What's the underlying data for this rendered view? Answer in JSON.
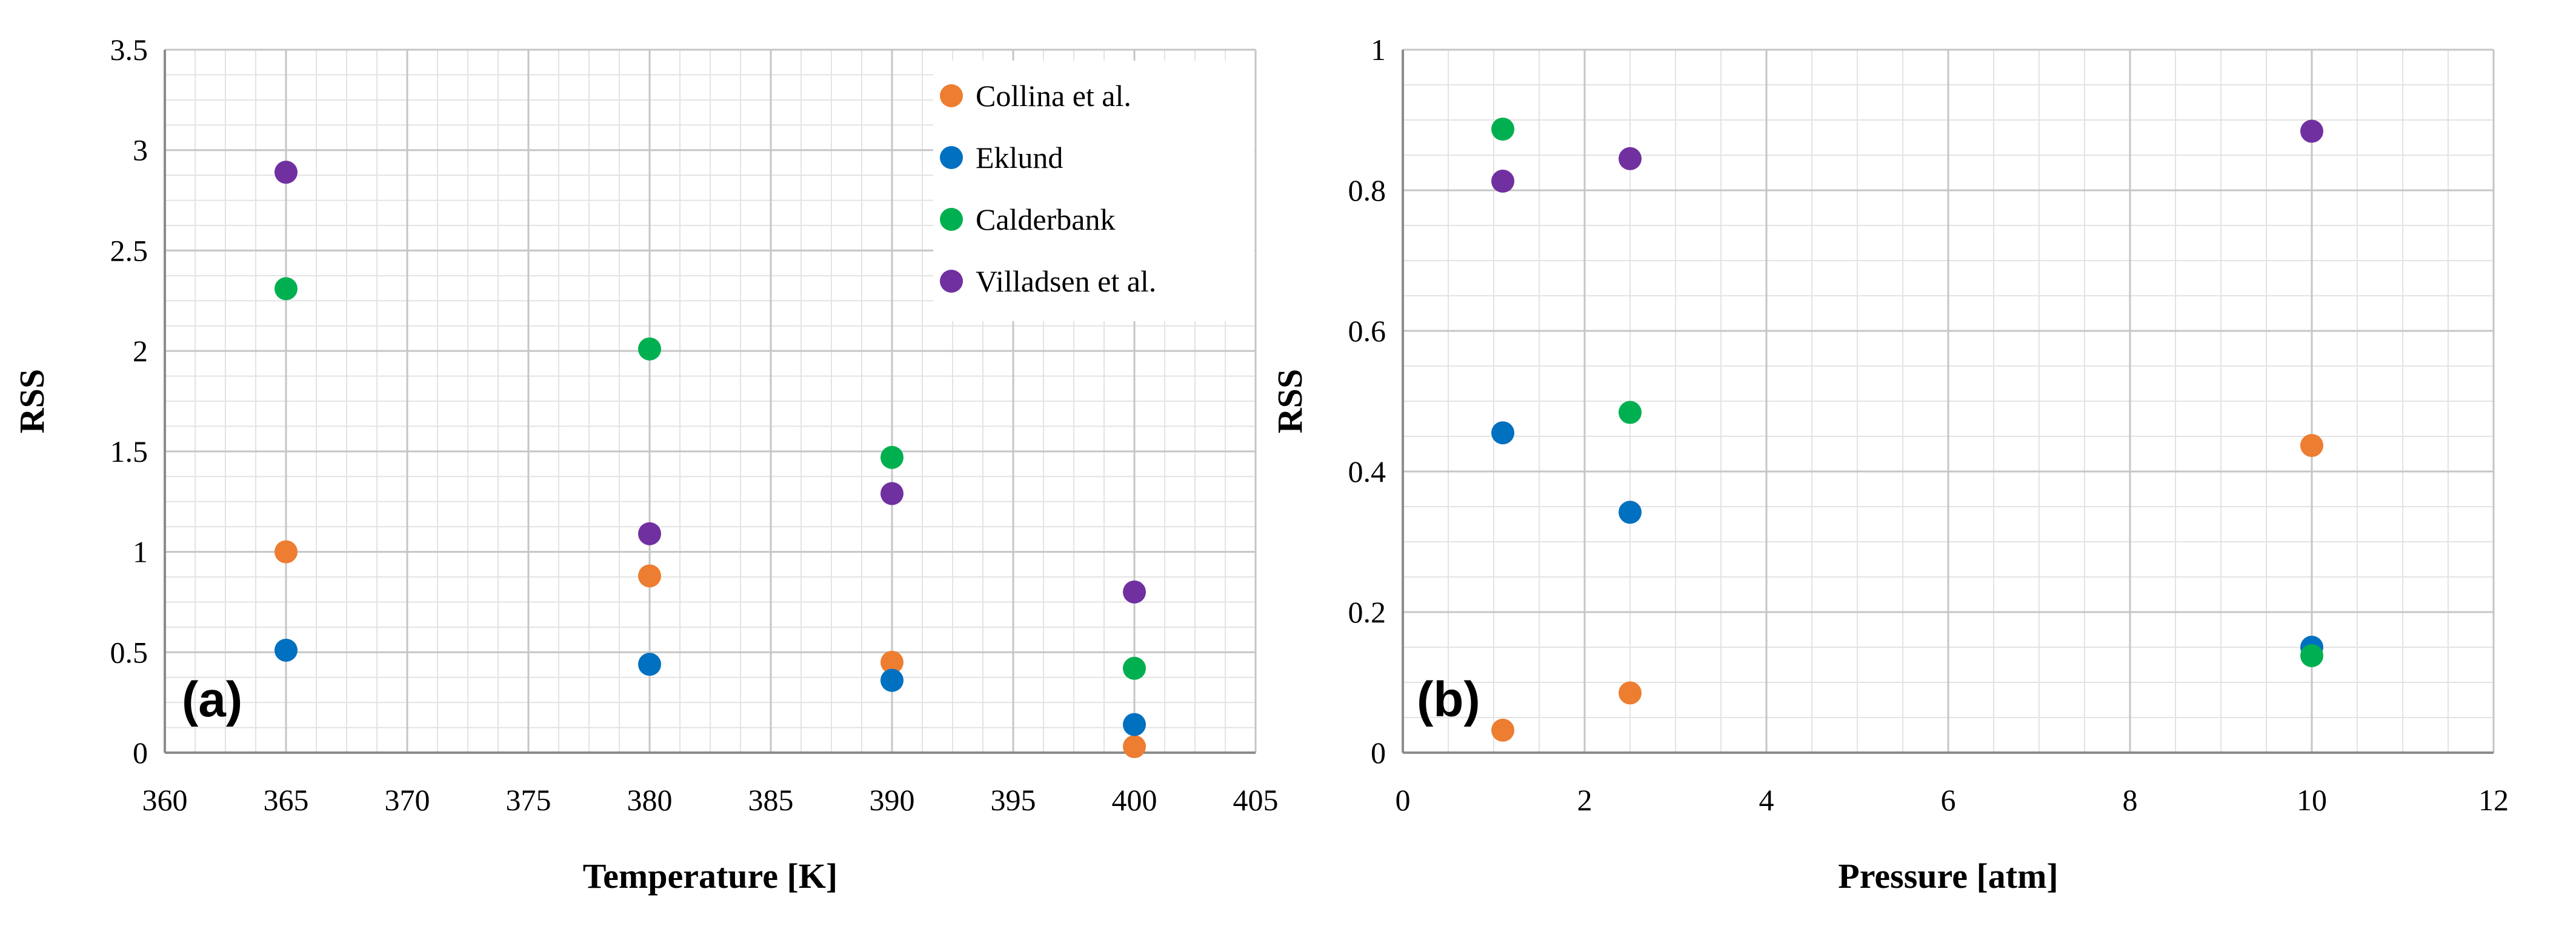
{
  "chart_data": [
    {
      "type": "scatter",
      "panel_label": "(a)",
      "xlabel": "Temperature [K]",
      "ylabel": "RSS",
      "xlim": [
        360,
        405
      ],
      "ylim": [
        0,
        3.5
      ],
      "xticks": [
        360,
        365,
        370,
        375,
        380,
        385,
        390,
        395,
        400,
        405
      ],
      "xtick_labels": [
        "360",
        "365",
        "370",
        "375",
        "380",
        "385",
        "390",
        "395",
        "400",
        "405"
      ],
      "yticks": [
        0,
        0.5,
        1,
        1.5,
        2,
        2.5,
        3,
        3.5
      ],
      "ytick_labels": [
        "0",
        "0.5",
        "1",
        "1.5",
        "2",
        "2.5",
        "3",
        "3.5"
      ],
      "grid": true,
      "legend_position": "top-right",
      "series": [
        {
          "name": "Collina et al.",
          "color": "#ED7D31",
          "points": [
            [
              365,
              1.0
            ],
            [
              380,
              0.88
            ],
            [
              390,
              0.45
            ],
            [
              400,
              0.03
            ]
          ]
        },
        {
          "name": "Eklund",
          "color": "#0070C0",
          "points": [
            [
              365,
              0.51
            ],
            [
              380,
              0.44
            ],
            [
              390,
              0.36
            ],
            [
              400,
              0.14
            ]
          ]
        },
        {
          "name": "Calderbank",
          "color": "#00B050",
          "points": [
            [
              365,
              2.31
            ],
            [
              380,
              2.01
            ],
            [
              390,
              1.47
            ],
            [
              400,
              0.42
            ]
          ]
        },
        {
          "name": "Villadsen et al.",
          "color": "#7030A0",
          "points": [
            [
              365,
              2.89
            ],
            [
              380,
              1.09
            ],
            [
              390,
              1.29
            ],
            [
              400,
              0.8
            ]
          ]
        }
      ]
    },
    {
      "type": "scatter",
      "panel_label": "(b)",
      "xlabel": "Pressure [atm]",
      "ylabel": "RSS",
      "xlim": [
        0,
        12
      ],
      "ylim": [
        0,
        1
      ],
      "xticks": [
        0,
        2,
        4,
        6,
        8,
        10,
        12
      ],
      "xtick_labels": [
        "0",
        "2",
        "4",
        "6",
        "8",
        "10",
        "12"
      ],
      "yticks": [
        0,
        0.2,
        0.4,
        0.6,
        0.8,
        1
      ],
      "ytick_labels": [
        "0",
        "0.2",
        "0.4",
        "0.6",
        "0.8",
        "1"
      ],
      "grid": true,
      "legend_position": "none",
      "series": [
        {
          "color": "#ED7D31",
          "points": [
            [
              1.1,
              0.032
            ],
            [
              2.5,
              0.085
            ],
            [
              10,
              0.437
            ]
          ]
        },
        {
          "color": "#0070C0",
          "points": [
            [
              1.1,
              0.455
            ],
            [
              2.5,
              0.342
            ],
            [
              10,
              0.15
            ]
          ]
        },
        {
          "color": "#00B050",
          "points": [
            [
              1.1,
              0.887
            ],
            [
              2.5,
              0.484
            ],
            [
              10,
              0.138
            ]
          ]
        },
        {
          "color": "#7030A0",
          "points": [
            [
              1.1,
              0.813
            ],
            [
              2.5,
              0.845
            ],
            [
              10,
              0.884
            ]
          ]
        }
      ]
    }
  ]
}
